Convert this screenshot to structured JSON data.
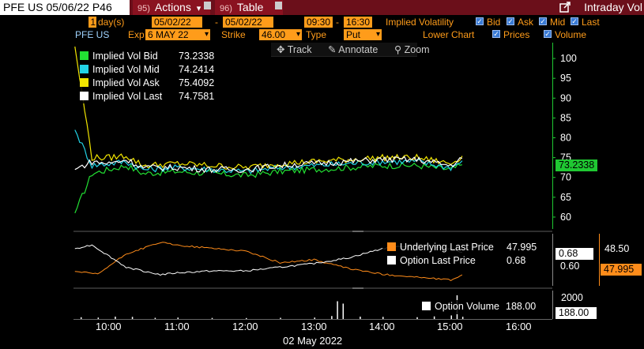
{
  "topbar": {
    "ticker": "PFE US 05/06/22 P46",
    "actions_num": "95)",
    "actions_label": "Actions",
    "actions_caret": "▾",
    "table_num": "96)",
    "table_label": "Table",
    "title": "Intraday Vol"
  },
  "controls_row1": {
    "days_value": "1",
    "days_label": "day(s)",
    "start_date": "05/02/22",
    "end_date": "05/02/22",
    "dash": "-",
    "start_time": "09:30",
    "end_time": "16:30",
    "iv_label": "Implied Volatility",
    "bid_label": "Bid",
    "ask_label": "Ask",
    "mid_label": "Mid",
    "last_label": "Last"
  },
  "controls_row2": {
    "security": "PFE US",
    "exp_label": "Exp",
    "exp_value": "6 MAY 22",
    "strike_label": "Strike",
    "strike_value": "46.00",
    "type_label": "Type",
    "type_value": "Put",
    "lower_chart_label": "Lower Chart",
    "prices_label": "Prices",
    "volume_label": "Volume"
  },
  "toolbar": {
    "track_icon": "✥",
    "track_label": "Track",
    "annotate_icon": "✎",
    "annotate_label": "Annotate",
    "zoom_icon": "⚲",
    "zoom_label": "Zoom"
  },
  "upper_legend": [
    {
      "label": "Implied Vol Bid",
      "value": "73.2338",
      "color": "#22e033"
    },
    {
      "label": "Implied Vol Mid",
      "value": "74.2414",
      "color": "#22d3e6"
    },
    {
      "label": "Implied Vol Ask",
      "value": "75.4092",
      "color": "#f2e600"
    },
    {
      "label": "Implied Vol Last",
      "value": "74.7581",
      "color": "#ffffff"
    }
  ],
  "upper_axis": {
    "ticks": [
      60,
      65,
      70,
      75,
      80,
      85,
      90,
      95,
      100
    ],
    "ymin": 57,
    "ymax": 104,
    "current_tag": "73.2338"
  },
  "middle_legend": [
    {
      "label": "Underlying Last Price",
      "value": "47.995",
      "color": "#ff8c1a"
    },
    {
      "label": "Option Last Price",
      "value": "0.68",
      "color": "#ffffff"
    }
  ],
  "middle_axis": {
    "left_tick": "0.60",
    "left_tag": "0.68",
    "right_tick": "48.50",
    "right_tag": "47.995"
  },
  "lower_legend": {
    "label": "Option Volume",
    "value": "188.00",
    "color": "#ffffff"
  },
  "lower_axis": {
    "tick": "2000",
    "tag": "188.00"
  },
  "x_axis": {
    "labels": [
      "10:00",
      "11:00",
      "12:00",
      "13:00",
      "14:00",
      "15:00",
      "16:00"
    ],
    "date_label": "02 May 2022"
  },
  "chart_data": {
    "type": "line",
    "x_unit": "time of day",
    "upper": {
      "ylim": [
        57,
        104
      ],
      "series": [
        {
          "name": "Implied Vol Bid",
          "color": "#22e033",
          "x": [
            "09:30",
            "09:45",
            "10:00",
            "10:15",
            "10:30",
            "11:00",
            "11:30",
            "12:00",
            "12:30",
            "13:00",
            "13:30",
            "14:00",
            "14:30",
            "15:00",
            "15:10"
          ],
          "values": [
            61,
            71,
            72,
            73,
            71,
            71.5,
            71,
            70.5,
            71.5,
            72,
            72.5,
            73,
            73,
            72,
            73.2
          ]
        },
        {
          "name": "Implied Vol Mid",
          "color": "#22d3e6",
          "x": [
            "09:30",
            "09:45",
            "10:00",
            "10:15",
            "10:30",
            "11:00",
            "11:30",
            "12:00",
            "12:30",
            "13:00",
            "13:30",
            "14:00",
            "14:30",
            "15:00",
            "15:10"
          ],
          "values": [
            82,
            73,
            73.5,
            74,
            72,
            72.5,
            72,
            71.5,
            72.5,
            73,
            73.5,
            74,
            74,
            72.5,
            74.2
          ]
        },
        {
          "name": "Implied Vol Ask",
          "color": "#f2e600",
          "x": [
            "09:30",
            "09:45",
            "10:00",
            "10:15",
            "10:30",
            "11:00",
            "11:30",
            "12:00",
            "12:30",
            "13:00",
            "13:30",
            "14:00",
            "14:30",
            "15:00",
            "15:10"
          ],
          "values": [
            103,
            75,
            75,
            75.5,
            73,
            73.5,
            73,
            72.5,
            73.5,
            74,
            74.5,
            75,
            75,
            73.5,
            75.4
          ]
        },
        {
          "name": "Implied Vol Last",
          "color": "#ffffff",
          "x": [
            "09:30",
            "09:45",
            "10:00",
            "10:15",
            "10:30",
            "11:00",
            "11:30",
            "12:00",
            "12:30",
            "13:00",
            "13:30",
            "14:00",
            "14:30",
            "15:00",
            "15:10"
          ],
          "values": [
            72,
            74,
            73.5,
            74.5,
            72.5,
            72.5,
            72,
            72,
            73,
            73.5,
            74,
            74.5,
            74.5,
            73,
            74.8
          ]
        }
      ]
    },
    "middle": {
      "series": [
        {
          "name": "Underlying Last Price",
          "color": "#ff8c1a",
          "axis": "right",
          "ylim": [
            47.8,
            48.7
          ],
          "x": [
            "09:30",
            "09:50",
            "10:15",
            "10:45",
            "11:00",
            "11:30",
            "12:00",
            "12:30",
            "13:00",
            "13:30",
            "14:00",
            "14:30",
            "15:00",
            "15:10"
          ],
          "values": [
            48.05,
            48.0,
            48.35,
            48.55,
            48.5,
            48.45,
            48.4,
            48.2,
            48.25,
            48.1,
            48.0,
            47.95,
            47.9,
            47.99
          ]
        },
        {
          "name": "Option Last Price",
          "color": "#ffffff",
          "axis": "left",
          "ylim": [
            0.5,
            0.78
          ],
          "x": [
            "09:30",
            "09:45",
            "10:00",
            "10:15",
            "10:45",
            "11:00",
            "11:30",
            "12:00",
            "12:30",
            "13:00",
            "13:30",
            "14:00",
            "14:30",
            "15:00",
            "15:10"
          ],
          "values": [
            0.7,
            0.72,
            0.66,
            0.6,
            0.56,
            0.57,
            0.58,
            0.58,
            0.6,
            0.62,
            0.65,
            0.7,
            0.72,
            0.7,
            0.68
          ]
        }
      ]
    },
    "lower": {
      "name": "Option Volume",
      "ylim": [
        0,
        2400
      ],
      "x": [
        "09:35",
        "09:50",
        "10:05",
        "10:20",
        "10:40",
        "11:00",
        "11:30",
        "12:00",
        "12:30",
        "13:00",
        "13:15",
        "13:20",
        "13:25",
        "13:40",
        "14:00",
        "14:30",
        "14:45",
        "15:00",
        "15:05",
        "15:10"
      ],
      "values": [
        150,
        120,
        200,
        180,
        100,
        120,
        90,
        80,
        100,
        120,
        250,
        1500,
        1300,
        200,
        180,
        150,
        220,
        300,
        2000,
        188
      ]
    }
  }
}
